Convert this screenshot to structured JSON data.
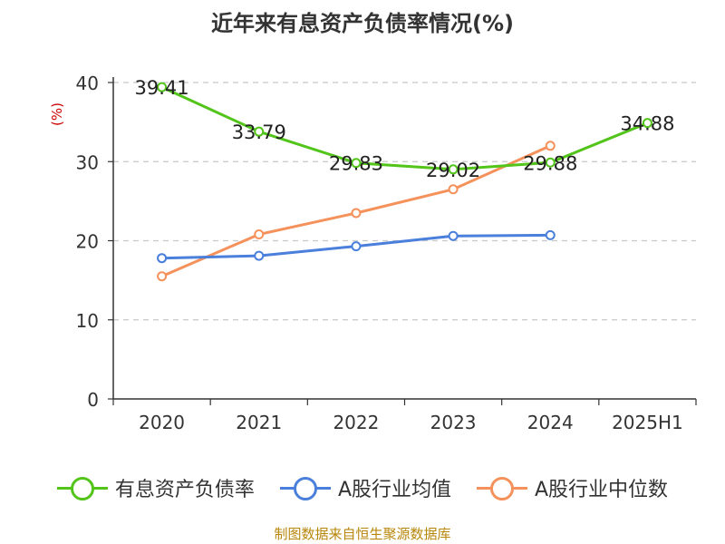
{
  "chart_data": {
    "type": "line",
    "title": "近年来有息资产负债率情况(%)",
    "ylabel": "(%)",
    "xlabel": "",
    "categories": [
      "2020",
      "2021",
      "2022",
      "2023",
      "2024",
      "2025H1"
    ],
    "ylim": [
      0,
      40
    ],
    "yticks": [
      "0",
      "10",
      "20",
      "30",
      "40"
    ],
    "grid": true,
    "legend_position": "bottom",
    "series": [
      {
        "name": "有息资产负债率",
        "color": "#52c41a",
        "values": [
          39.41,
          33.79,
          29.83,
          29.02,
          29.88,
          34.88
        ],
        "labels": [
          "39.41",
          "33.79",
          "29.83",
          "29.02",
          "29.88",
          "34.88"
        ]
      },
      {
        "name": "A股行业均值",
        "color": "#4a7fdc",
        "values": [
          17.8,
          18.1,
          19.3,
          20.6,
          20.7,
          null
        ]
      },
      {
        "name": "A股行业中位数",
        "color": "#f5915a",
        "values": [
          15.5,
          20.8,
          23.5,
          26.5,
          32.0,
          null
        ]
      }
    ],
    "source": "制图数据来自恒生聚源数据库"
  }
}
